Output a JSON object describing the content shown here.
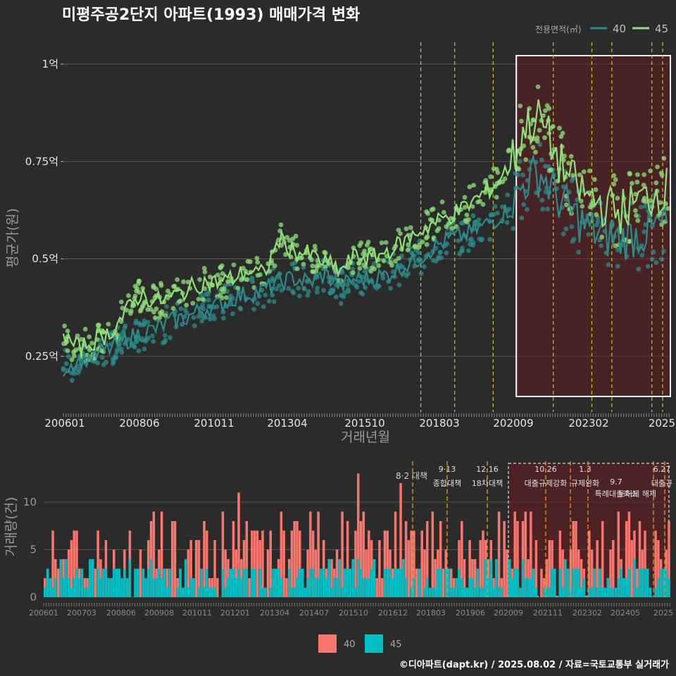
{
  "title": "미평주공2단지 아파트(1993) 매매가격 변화",
  "legend_top": {
    "caption": "전용면적(㎡)",
    "items": [
      {
        "label": "40",
        "color": "#2e8b8b"
      },
      {
        "label": "45",
        "color": "#90e07a"
      }
    ]
  },
  "legend_bottom": {
    "items": [
      {
        "label": "40",
        "color": "#f8766d"
      },
      {
        "label": "45",
        "color": "#00bfc4"
      }
    ]
  },
  "footer": "©디아파트(dapt.kr) / 2025.08.02 / 자료=국토교통부 실거래가",
  "chart_data": [
    {
      "type": "line",
      "title": "미평주공2단지 아파트(1993) 매매가격 변화",
      "xlabel": "거래년월",
      "ylabel": "평균가(원)",
      "x_ticks": [
        "200601",
        "200806",
        "201011",
        "201304",
        "201510",
        "201803",
        "202009",
        "202302",
        "2025"
      ],
      "y_ticks": [
        {
          "label": "0.25억",
          "value": 0.25
        },
        {
          "label": "0.5억",
          "value": 0.5
        },
        {
          "label": "0.75억",
          "value": 0.75
        },
        {
          "label": "1억",
          "value": 1.0
        }
      ],
      "ylim": [
        0.1,
        1.05
      ],
      "unit": "억원",
      "series": [
        {
          "name": "40",
          "color": "#2e8b8b",
          "x": [
            2006.0,
            2006.5,
            2007.0,
            2007.5,
            2008.0,
            2008.5,
            2009.0,
            2009.5,
            2010.0,
            2010.5,
            2011.0,
            2011.5,
            2012.0,
            2012.5,
            2013.0,
            2013.5,
            2014.0,
            2014.5,
            2015.0,
            2015.5,
            2016.0,
            2016.5,
            2017.0,
            2017.5,
            2018.0,
            2018.5,
            2019.0,
            2019.5,
            2020.0,
            2020.5,
            2021.0,
            2021.5,
            2022.0,
            2022.5,
            2023.0,
            2023.5,
            2024.0,
            2024.5,
            2025.0,
            2025.5
          ],
          "y": [
            0.22,
            0.24,
            0.25,
            0.27,
            0.29,
            0.31,
            0.32,
            0.34,
            0.35,
            0.37,
            0.38,
            0.4,
            0.41,
            0.42,
            0.44,
            0.45,
            0.44,
            0.46,
            0.43,
            0.45,
            0.45,
            0.46,
            0.48,
            0.5,
            0.53,
            0.55,
            0.56,
            0.58,
            0.6,
            0.63,
            0.7,
            0.72,
            0.66,
            0.62,
            0.58,
            0.56,
            0.55,
            0.56,
            0.57,
            0.59
          ]
        },
        {
          "name": "45",
          "color": "#90e07a",
          "x": [
            2006.0,
            2006.5,
            2007.0,
            2007.5,
            2008.0,
            2008.5,
            2009.0,
            2009.5,
            2010.0,
            2010.5,
            2011.0,
            2011.5,
            2012.0,
            2012.5,
            2013.0,
            2013.5,
            2014.0,
            2014.5,
            2015.0,
            2015.5,
            2016.0,
            2016.5,
            2017.0,
            2017.5,
            2018.0,
            2018.5,
            2019.0,
            2019.5,
            2020.0,
            2020.5,
            2021.0,
            2021.5,
            2022.0,
            2022.5,
            2023.0,
            2023.5,
            2024.0,
            2024.5,
            2025.0,
            2025.5
          ],
          "y": [
            0.3,
            0.27,
            0.29,
            0.31,
            0.36,
            0.41,
            0.39,
            0.4,
            0.42,
            0.44,
            0.44,
            0.45,
            0.47,
            0.46,
            0.55,
            0.52,
            0.51,
            0.49,
            0.47,
            0.51,
            0.5,
            0.52,
            0.54,
            0.57,
            0.59,
            0.61,
            0.63,
            0.66,
            0.69,
            0.74,
            0.84,
            0.86,
            0.76,
            0.7,
            0.66,
            0.64,
            0.62,
            0.64,
            0.66,
            0.68
          ]
        }
      ],
      "highlight_period": {
        "from": 2020.7,
        "to": 2025.7
      },
      "policy_lines": [
        2017.6,
        2018.7,
        2019.95,
        2021.9,
        2023.15,
        2023.8,
        2025.1,
        2025.45
      ]
    },
    {
      "type": "bar",
      "xlabel": "",
      "ylabel": "거래량(건)",
      "x_ticks": [
        "200601",
        "200703",
        "200806",
        "200908",
        "201011",
        "201201",
        "201304",
        "201407",
        "201510",
        "201612",
        "201803",
        "201906",
        "202009",
        "202111",
        "202302",
        "202405",
        "2025"
      ],
      "y_ticks": [
        0,
        5,
        10
      ],
      "ylim": [
        0,
        14
      ],
      "series": [
        {
          "name": "40",
          "color": "#f8766d"
        },
        {
          "name": "45",
          "color": "#00bfc4"
        }
      ],
      "annotations": [
        {
          "date": "8·2",
          "label": "대책"
        },
        {
          "date": "9·13",
          "label": "종합대책"
        },
        {
          "date": "12·16",
          "label": "18차대책"
        },
        {
          "date": "10.26",
          "label": "대출규제강화"
        },
        {
          "date": "1.3",
          "label": "규제완화"
        },
        {
          "date": "9.7",
          "label": "특례대출축소"
        },
        {
          "date": "",
          "label": "토허제 해제"
        },
        {
          "date": "6.27",
          "label": "대출규"
        }
      ]
    }
  ]
}
